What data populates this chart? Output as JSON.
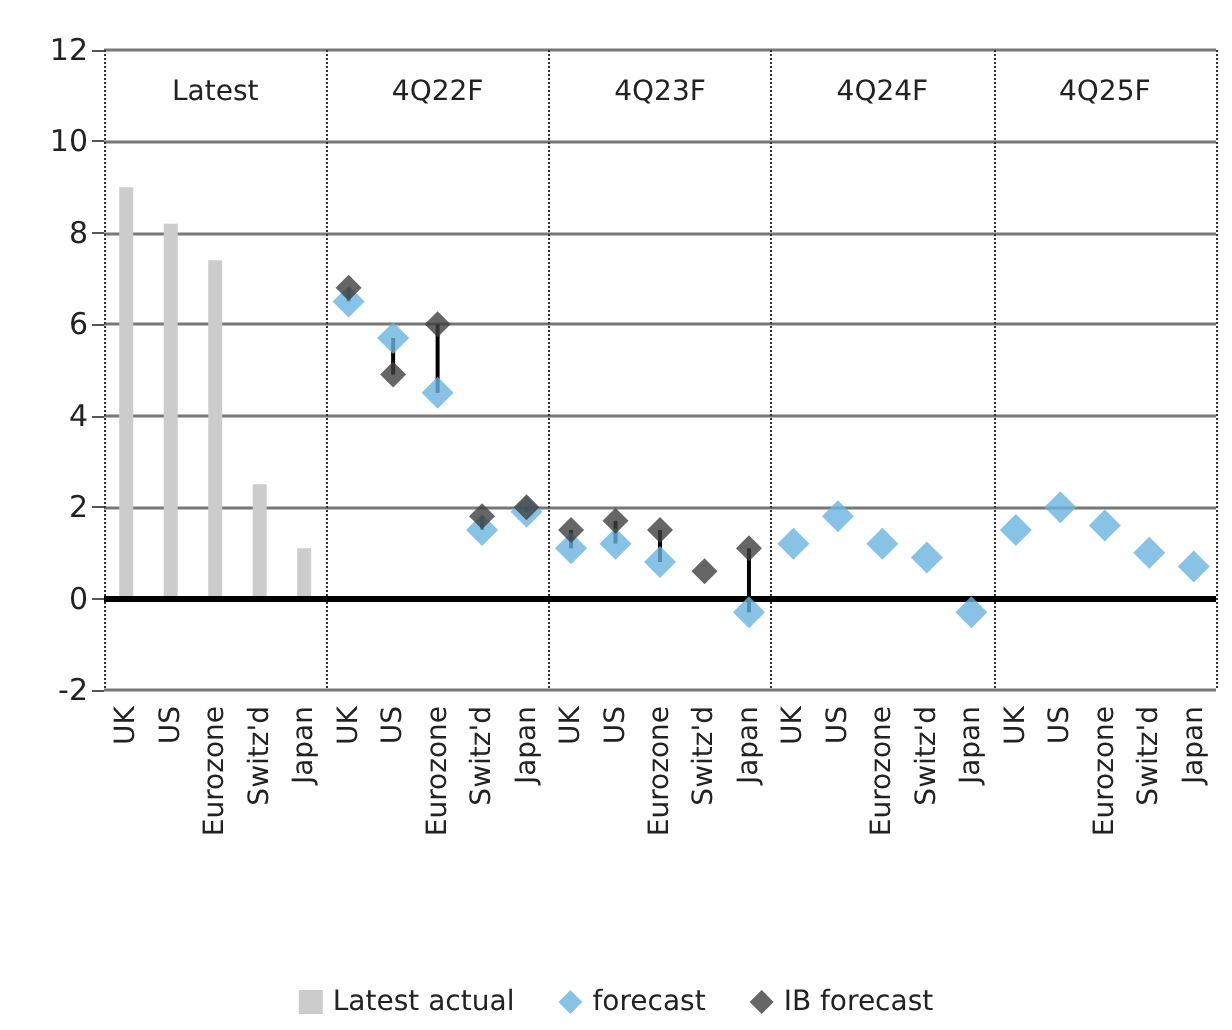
{
  "chart_data": {
    "type": "scatter",
    "categories": [
      "UK",
      "US",
      "Eurozone",
      "Switz'd",
      "Japan",
      "UK",
      "US",
      "Eurozone",
      "Switz'd",
      "Japan",
      "UK",
      "US",
      "Eurozone",
      "Switz'd",
      "Japan",
      "UK",
      "US",
      "Eurozone",
      "Switz'd",
      "Japan",
      "UK",
      "US",
      "Eurozone",
      "Switz'd",
      "Japan"
    ],
    "series": [
      {
        "name": "Latest actual",
        "type": "bar",
        "color": "#cccccc",
        "values": [
          9.0,
          8.2,
          7.4,
          2.5,
          1.1,
          null,
          null,
          null,
          null,
          null,
          null,
          null,
          null,
          null,
          null,
          null,
          null,
          null,
          null,
          null,
          null,
          null,
          null,
          null,
          null
        ]
      },
      {
        "name": "forecast",
        "color": "#6ab4e0",
        "values": [
          null,
          null,
          null,
          null,
          null,
          6.5,
          5.7,
          4.5,
          1.5,
          1.9,
          1.1,
          1.2,
          0.8,
          null,
          -0.3,
          1.2,
          1.8,
          1.2,
          0.9,
          -0.3,
          1.5,
          2.0,
          1.6,
          1.0,
          0.7
        ]
      },
      {
        "name": "IB forecast",
        "color": "#404040",
        "values": [
          null,
          null,
          null,
          null,
          null,
          6.8,
          4.9,
          6.0,
          1.8,
          2.0,
          1.5,
          1.7,
          1.5,
          0.6,
          1.1,
          null,
          null,
          null,
          null,
          null,
          null,
          null,
          null,
          null,
          null
        ]
      }
    ],
    "annotations": [
      "Latest",
      "4Q22F",
      "4Q23F",
      "4Q24F",
      "4Q25F"
    ],
    "ylim": [
      -2,
      12
    ],
    "yticks": [
      -2,
      0,
      2,
      4,
      6,
      8,
      10,
      12
    ],
    "ref_lines": [
      {
        "axis": "y",
        "value": 0,
        "color": "#000000"
      }
    ],
    "grid": "y",
    "marker": "diamond",
    "legend": "bottom"
  }
}
